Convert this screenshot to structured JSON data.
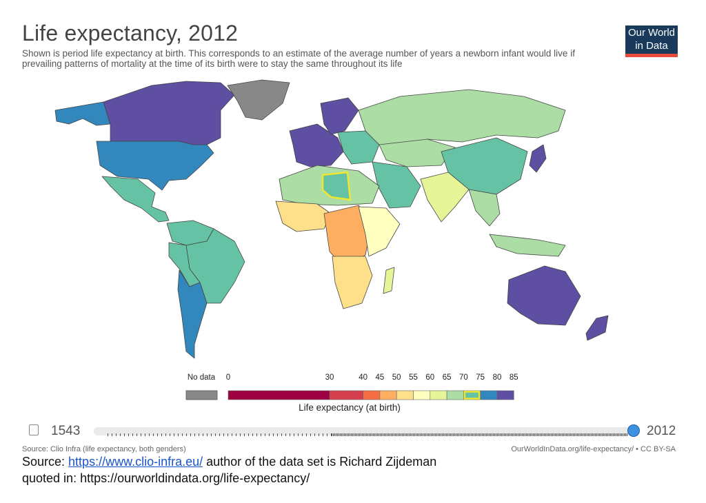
{
  "title": "Life expectancy, 2012",
  "subtitle": "Shown is period life expectancy at birth. This corresponds to an estimate of the average number of years a newborn infant would live if prevailing patterns of mortality at the time of its birth were to stay the same throughout its life",
  "logo": {
    "line1": "Our World",
    "line2": "in Data"
  },
  "legend": {
    "title": "Life expectancy (at birth)",
    "no_data_label": "No data",
    "no_data_color": "#888888",
    "bins": [
      {
        "from": 0,
        "to": 30,
        "color": "#9e0142"
      },
      {
        "from": 30,
        "to": 40,
        "color": "#d53e4f"
      },
      {
        "from": 40,
        "to": 45,
        "color": "#f46d43"
      },
      {
        "from": 45,
        "to": 50,
        "color": "#fdae61"
      },
      {
        "from": 50,
        "to": 55,
        "color": "#fee08b"
      },
      {
        "from": 55,
        "to": 60,
        "color": "#ffffbf"
      },
      {
        "from": 60,
        "to": 65,
        "color": "#e6f598"
      },
      {
        "from": 65,
        "to": 70,
        "color": "#abdda4"
      },
      {
        "from": 70,
        "to": 75,
        "color": "#66c2a5"
      },
      {
        "from": 75,
        "to": 80,
        "color": "#3288bd"
      },
      {
        "from": 80,
        "to": 85,
        "color": "#5e4fa2"
      }
    ],
    "tick_labels": [
      "0",
      "30",
      "40",
      "45",
      "50",
      "55",
      "60",
      "65",
      "70",
      "75",
      "80",
      "85"
    ],
    "highlight_bin": 8,
    "highlight_color": "#f0e62f"
  },
  "timeline": {
    "start_year": "1543",
    "end_year": "2012",
    "position": 1.0
  },
  "footer": {
    "source_small": "Source: Clio Infra (life expectancy, both genders)",
    "owid_small": "OurWorldInData.org/life-expectancy/ • CC BY-SA",
    "source_prefix": "Source: ",
    "source_link": "https://www.clio-infra.eu/",
    "source_suffix": " author of the data set is Richard Zijdeman",
    "quoted": "quoted in: https://ourworldindata.org/life-expectancy/"
  }
}
